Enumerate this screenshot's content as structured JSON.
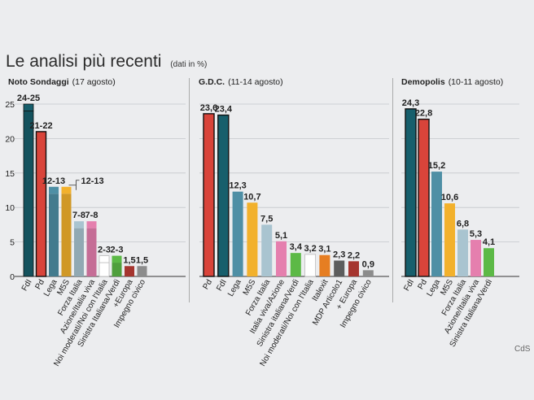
{
  "title": "Le analisi più recenti",
  "subtitle": "(dati in %)",
  "credit": "CdS",
  "colors": {
    "fdi": "#175f6c",
    "pd": "#d9443a",
    "lega": "#4e8fa5",
    "m5s": "#f2b12c",
    "forza_italia": "#a9c4d0",
    "azione_iv": "#e57fae",
    "noi_moderati": "#ffffff",
    "sinistra_verdi": "#5cb946",
    "europa": "#a5352f",
    "impegno_civico": "#8c8c8c",
    "italexit": "#e67e22",
    "mdp": "#5d5d5d"
  },
  "chart_data": [
    {
      "type": "bar",
      "title": "Noto Sondaggi",
      "subtitle": "(17 agosto)",
      "ylim": [
        0,
        25
      ],
      "yticks": [
        0,
        5,
        10,
        15,
        20,
        25
      ],
      "grid": true,
      "categories": [
        "FdI",
        "Pd",
        "Lega",
        "M5S",
        "Forza Italia",
        "Azione/Italia viva",
        "Noi moderati/Noi con l'Italia",
        "Sinistra Italiana/Verdi",
        "+Europa",
        "Impegno civico"
      ],
      "ranges": [
        [
          24,
          25
        ],
        null,
        [
          12,
          13
        ],
        [
          12,
          13
        ],
        [
          7,
          8
        ],
        [
          7,
          8
        ],
        [
          2,
          3
        ],
        [
          2,
          3
        ],
        null,
        null
      ],
      "values": [
        25,
        21,
        13,
        13,
        8,
        8,
        3,
        3,
        1.5,
        1.5
      ],
      "labels": [
        "24-25",
        "21-22",
        "12-13",
        "",
        "7-8",
        "7-8",
        "2-3",
        "2-3",
        "1,5",
        "1,5"
      ],
      "bracket_label": "12-13",
      "keys": [
        "fdi",
        "pd",
        "lega",
        "m5s",
        "forza_italia",
        "azione_iv",
        "noi_moderati",
        "sinistra_verdi",
        "europa",
        "impegno_civico"
      ]
    },
    {
      "type": "bar",
      "title": "G.D.C.",
      "subtitle": "(11-14 agosto)",
      "ylim": [
        0,
        25
      ],
      "grid": true,
      "categories": [
        "Pd",
        "FdI",
        "Lega",
        "M5S",
        "Forza Italia",
        "Italia viva/Azione",
        "Sinistra italiana/Verdi",
        "Noi moderati/Noi con l'Italia",
        "Italexit",
        "MDP Articolo1",
        "+ Europa",
        "Impegno civico"
      ],
      "values": [
        23.6,
        23.4,
        12.3,
        10.7,
        7.5,
        5.1,
        3.4,
        3.2,
        3.1,
        2.3,
        2.2,
        0.9
      ],
      "labels": [
        "23,6",
        "23,4",
        "12,3",
        "10,7",
        "7,5",
        "5,1",
        "3,4",
        "3,2",
        "3,1",
        "2,3",
        "2,2",
        "0,9"
      ],
      "keys": [
        "pd",
        "fdi",
        "lega",
        "m5s",
        "forza_italia",
        "azione_iv",
        "sinistra_verdi",
        "noi_moderati",
        "italexit",
        "mdp",
        "europa",
        "impegno_civico"
      ]
    },
    {
      "type": "bar",
      "title": "Demopolis",
      "subtitle": "(10-11 agosto)",
      "ylim": [
        0,
        25
      ],
      "grid": true,
      "categories": [
        "FdI",
        "Pd",
        "Lega",
        "M5S",
        "Forza Italia",
        "Azione/Italia viva",
        "Sinistra Italiana/Verdi"
      ],
      "values": [
        24.3,
        22.8,
        15.2,
        10.6,
        6.8,
        5.3,
        4.1
      ],
      "labels": [
        "24,3",
        "22,8",
        "15,2",
        "10,6",
        "6,8",
        "5,3",
        "4,1"
      ],
      "keys": [
        "fdi",
        "pd",
        "lega",
        "m5s",
        "forza_italia",
        "azione_iv",
        "sinistra_verdi"
      ]
    }
  ]
}
